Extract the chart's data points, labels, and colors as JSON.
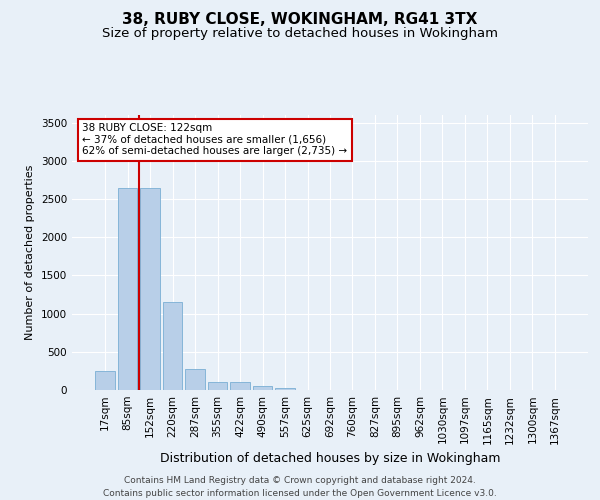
{
  "title1": "38, RUBY CLOSE, WOKINGHAM, RG41 3TX",
  "title2": "Size of property relative to detached houses in Wokingham",
  "xlabel": "Distribution of detached houses by size in Wokingham",
  "ylabel": "Number of detached properties",
  "footer1": "Contains HM Land Registry data © Crown copyright and database right 2024.",
  "footer2": "Contains public sector information licensed under the Open Government Licence v3.0.",
  "categories": [
    "17sqm",
    "85sqm",
    "152sqm",
    "220sqm",
    "287sqm",
    "355sqm",
    "422sqm",
    "490sqm",
    "557sqm",
    "625sqm",
    "692sqm",
    "760sqm",
    "827sqm",
    "895sqm",
    "962sqm",
    "1030sqm",
    "1097sqm",
    "1165sqm",
    "1232sqm",
    "1300sqm",
    "1367sqm"
  ],
  "values": [
    250,
    2650,
    2650,
    1150,
    270,
    110,
    110,
    50,
    30,
    5,
    5,
    5,
    5,
    0,
    0,
    0,
    0,
    0,
    0,
    0,
    0
  ],
  "bar_color": "#b8cfe8",
  "bar_edge_color": "#7aafd4",
  "vline_color": "#cc0000",
  "annotation_title": "38 RUBY CLOSE: 122sqm",
  "annotation_line1": "← 37% of detached houses are smaller (1,656)",
  "annotation_line2": "62% of semi-detached houses are larger (2,735) →",
  "annotation_box_color": "#ffffff",
  "annotation_box_edge": "#cc0000",
  "ylim": [
    0,
    3600
  ],
  "yticks": [
    0,
    500,
    1000,
    1500,
    2000,
    2500,
    3000,
    3500
  ],
  "background_color": "#e8f0f8",
  "plot_bg_color": "#e8f0f8",
  "grid_color": "#ffffff",
  "title1_fontsize": 11,
  "title2_fontsize": 9.5,
  "xlabel_fontsize": 9,
  "ylabel_fontsize": 8,
  "tick_fontsize": 7.5,
  "footer_fontsize": 6.5
}
